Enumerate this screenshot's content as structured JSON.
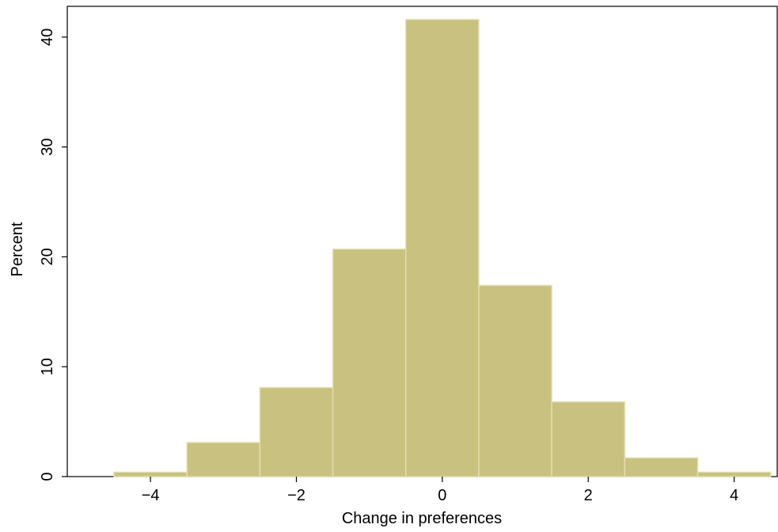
{
  "chart_data": {
    "type": "histogram",
    "xlabel": "Change in preferences",
    "ylabel": "Percent",
    "bins": [
      -4.5,
      -3.5,
      -2.5,
      -1.5,
      -0.5,
      0.5,
      1.5,
      2.5,
      3.5,
      4.5
    ],
    "values": [
      0.4,
      3.1,
      8.1,
      20.7,
      41.6,
      17.4,
      6.8,
      1.7,
      0.4
    ],
    "color": "#c9c17f",
    "edge_color": "#e3deae",
    "xlim": [
      -5.14,
      4.59
    ],
    "ylim": [
      0,
      42.8
    ],
    "xticks": [
      {
        "value": -4,
        "label": "−4"
      },
      {
        "value": -2,
        "label": "−2"
      },
      0,
      2,
      4
    ],
    "yticks": [
      0,
      10,
      20,
      30,
      40
    ]
  }
}
